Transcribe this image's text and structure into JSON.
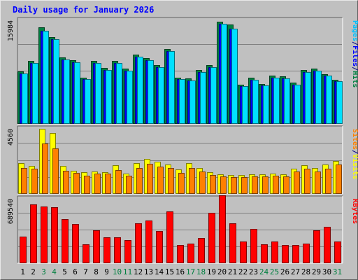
{
  "chart_data": {
    "title": "Daily usage for January 2026",
    "type": "bar",
    "categories": [
      "1",
      "2",
      "3",
      "4",
      "5",
      "6",
      "7",
      "8",
      "9",
      "10",
      "11",
      "12",
      "13",
      "14",
      "15",
      "16",
      "17",
      "18",
      "19",
      "20",
      "21",
      "22",
      "23",
      "24",
      "25",
      "26",
      "27",
      "28",
      "29",
      "30",
      "31"
    ],
    "weekend_categories": [
      "3",
      "4",
      "10",
      "11",
      "17",
      "18",
      "24",
      "25",
      "31"
    ],
    "panels": [
      {
        "id": "top",
        "max_label": "15984",
        "ymax": 15984,
        "right_labels": [
          {
            "text": "Hits",
            "color": "#008040"
          },
          {
            "text": "/",
            "color": "#000080"
          },
          {
            "text": "Files",
            "color": "#0000ff"
          },
          {
            "text": "/",
            "color": "#000080"
          },
          {
            "text": "Pages",
            "color": "#00c0ff"
          }
        ],
        "series": [
          {
            "name": "Hits",
            "color": "#008040",
            "values": [
              8000,
              9600,
              14700,
              13200,
              10100,
              9700,
              7000,
              9600,
              8500,
              9600,
              8400,
              10500,
              10000,
              8900,
              11400,
              7000,
              6900,
              8200,
              8900,
              15600,
              15100,
              6000,
              7000,
              6100,
              7300,
              7200,
              6300,
              8200,
              8400,
              7600,
              6700
            ]
          },
          {
            "name": "Files",
            "color": "#0000ff",
            "values": [
              7700,
              9300,
              14200,
              12900,
              9800,
              9400,
              6800,
              9300,
              8200,
              9300,
              8100,
              10200,
              9700,
              8600,
              11100,
              6800,
              6600,
              7900,
              8600,
              15200,
              14500,
              5800,
              6700,
              5900,
              7000,
              6900,
              6000,
              7900,
              8100,
              7300,
              6500
            ]
          },
          {
            "name": "Pages",
            "color": "#00e0ff",
            "values": [
              7700,
              9300,
              14200,
              12900,
              9800,
              9400,
              6800,
              9300,
              8200,
              9300,
              8100,
              10200,
              9700,
              8600,
              11100,
              6800,
              6600,
              7900,
              8600,
              15200,
              14500,
              5800,
              6700,
              5900,
              7000,
              6900,
              6000,
              7900,
              8100,
              7300,
              6500
            ]
          }
        ]
      },
      {
        "id": "middle",
        "max_label": "4560",
        "ymax": 4560,
        "right_labels": [
          {
            "text": "Visits",
            "color": "#ffff00"
          },
          {
            "text": "/",
            "color": "#000080"
          },
          {
            "text": "Sites",
            "color": "#ff8000"
          }
        ],
        "series": [
          {
            "name": "Visits",
            "color": "#ffff00",
            "values": [
              2100,
              1900,
              4450,
              4200,
              1900,
              1600,
              1500,
              1550,
              1500,
              1950,
              1400,
              2100,
              2400,
              2200,
              2000,
              1700,
              2100,
              1800,
              1500,
              1350,
              1300,
              1300,
              1350,
              1350,
              1400,
              1350,
              1750,
              1950,
              1800,
              2000,
              2250
            ]
          },
          {
            "name": "Sites",
            "color": "#ff8000",
            "values": [
              1800,
              1750,
              3450,
              3100,
              1600,
              1450,
              1250,
              1400,
              1400,
              1650,
              1250,
              1800,
              2050,
              1850,
              1800,
              1450,
              1800,
              1550,
              1300,
              1200,
              1150,
              1150,
              1200,
              1200,
              1250,
              1200,
              1550,
              1750,
              1550,
              1750,
              2000
            ]
          }
        ]
      },
      {
        "id": "bottom",
        "max_label": "689540",
        "ymax": 689540,
        "right_labels": [
          {
            "text": "KBytes",
            "color": "#ff0000"
          }
        ],
        "series": [
          {
            "name": "KBytes",
            "color": "#ff0000",
            "values": [
              280000,
              615000,
              595000,
              590000,
              465000,
              410000,
              198000,
              345000,
              270000,
              275000,
              242000,
              420000,
              445000,
              340000,
              540000,
              190000,
              208000,
              265000,
              525000,
              710000,
              420000,
              227000,
              360000,
              198000,
              225000,
              190000,
              188000,
              208000,
              345000,
              385000,
              230000
            ]
          }
        ]
      }
    ]
  }
}
